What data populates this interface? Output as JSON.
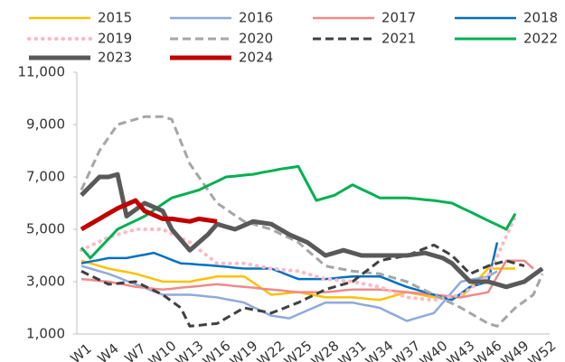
{
  "chart_data": {
    "type": "line",
    "categories": [
      "W1",
      null,
      null,
      "W4",
      null,
      null,
      "W7",
      null,
      null,
      "W10",
      null,
      null,
      "W13",
      null,
      null,
      "W16",
      null,
      null,
      "W19",
      null,
      null,
      "W22",
      null,
      null,
      "W25",
      null,
      null,
      "W28",
      null,
      null,
      "W31",
      null,
      null,
      "W34",
      null,
      null,
      "W37",
      null,
      null,
      "W40",
      null,
      null,
      "W43",
      null,
      null,
      "W46",
      null,
      null,
      "W49",
      null,
      null,
      "W52"
    ],
    "ylim": [
      1000,
      11000
    ],
    "yticks": [
      {
        "value": 1000,
        "label": "1,000"
      },
      {
        "value": 3000,
        "label": "3,000"
      },
      {
        "value": 5000,
        "label": "5,000"
      },
      {
        "value": 7000,
        "label": "7,000"
      },
      {
        "value": 9000,
        "label": "9,000"
      },
      {
        "value": 11000,
        "label": "11,000"
      }
    ],
    "series": [
      {
        "name": "2015",
        "color": "#ffc000",
        "style": "solid",
        "linewidth": 2.5,
        "values": [
          3800,
          3700,
          3600,
          3500,
          3430,
          3370,
          3300,
          3200,
          3100,
          3000,
          3000,
          3000,
          3000,
          3070,
          3130,
          3200,
          3200,
          3200,
          3200,
          2970,
          2730,
          2500,
          2530,
          2570,
          2600,
          2530,
          2470,
          2400,
          2400,
          2400,
          2400,
          2370,
          2330,
          2300,
          2400,
          2500,
          2600,
          2530,
          2470,
          2400,
          2400,
          2400,
          2400,
          2770,
          3130,
          3500,
          3500,
          3500,
          3500,
          null,
          null,
          null
        ]
      },
      {
        "name": "2016",
        "color": "#8faadc",
        "style": "solid",
        "linewidth": 2.5,
        "values": [
          3600,
          3500,
          3400,
          3300,
          3170,
          3030,
          2900,
          2770,
          2630,
          2500,
          2500,
          2500,
          2500,
          2470,
          2430,
          2400,
          2330,
          2270,
          2200,
          2030,
          1870,
          1700,
          1650,
          1600,
          1750,
          1900,
          2050,
          2200,
          2200,
          2200,
          2200,
          2130,
          2070,
          2000,
          1830,
          1670,
          1500,
          1600,
          1700,
          1800,
          2200,
          2600,
          3000,
          3070,
          3130,
          3200,
          3400,
          null,
          null,
          null,
          null,
          null
        ]
      },
      {
        "name": "2017",
        "color": "#ee8a8a",
        "style": "solid",
        "linewidth": 2.5,
        "values": [
          3100,
          3070,
          3030,
          3000,
          2930,
          2870,
          2800,
          2770,
          2730,
          2700,
          2730,
          2770,
          2800,
          2830,
          2870,
          2900,
          2870,
          2830,
          2800,
          2770,
          2730,
          2700,
          2670,
          2630,
          2600,
          2600,
          2600,
          2600,
          2630,
          2670,
          2700,
          2700,
          2700,
          2700,
          2670,
          2630,
          2600,
          2570,
          2530,
          2500,
          2470,
          2430,
          2400,
          2470,
          2530,
          2600,
          3200,
          3800,
          3800,
          3800,
          3500,
          null
        ]
      },
      {
        "name": "2018",
        "color": "#0070c0",
        "style": "solid",
        "linewidth": 2.5,
        "values": [
          3700,
          3770,
          3830,
          3900,
          3900,
          3900,
          3970,
          4030,
          4100,
          3970,
          3830,
          3700,
          3680,
          3650,
          3630,
          3600,
          3570,
          3530,
          3500,
          3500,
          3500,
          3500,
          3370,
          3230,
          3100,
          3100,
          3100,
          3100,
          3130,
          3170,
          3200,
          3200,
          3200,
          3200,
          3070,
          2930,
          2800,
          2700,
          2600,
          2500,
          2400,
          2300,
          2550,
          2800,
          2900,
          3000,
          4500,
          null,
          null,
          null,
          null,
          null
        ]
      },
      {
        "name": "2019",
        "color": "#ffb8c4",
        "style": "dotted",
        "linewidth": 4,
        "values": [
          4200,
          4370,
          4530,
          4700,
          4800,
          4900,
          5000,
          5000,
          5000,
          5000,
          4830,
          4670,
          4500,
          4230,
          3970,
          3700,
          3700,
          3700,
          3700,
          3630,
          3570,
          3500,
          3470,
          3430,
          3400,
          3300,
          3200,
          3100,
          3070,
          3030,
          3000,
          2930,
          2870,
          2800,
          2670,
          2530,
          2400,
          2370,
          2330,
          2300,
          2370,
          2430,
          2500,
          2730,
          2970,
          3200,
          3970,
          4730,
          5500,
          null,
          null,
          null
        ]
      },
      {
        "name": "2020",
        "color": "#a6a6a6",
        "style": "dashed",
        "linewidth": 3,
        "values": [
          6500,
          7250,
          8000,
          8500,
          9000,
          9100,
          9200,
          9300,
          9300,
          9300,
          9200,
          8350,
          7500,
          7000,
          6500,
          6000,
          5770,
          5530,
          5300,
          5200,
          5100,
          5000,
          4830,
          4670,
          4500,
          4200,
          3900,
          3600,
          3530,
          3470,
          3400,
          3370,
          3330,
          3300,
          3200,
          3100,
          3000,
          2830,
          2670,
          2500,
          2330,
          2170,
          2000,
          1800,
          1600,
          1400,
          1300,
          1650,
          2000,
          2250,
          2500,
          3300
        ]
      },
      {
        "name": "2021",
        "color": "#404040",
        "style": "dashed",
        "linewidth": 3,
        "values": [
          3400,
          3230,
          3070,
          2900,
          2930,
          2970,
          3000,
          2830,
          2670,
          2500,
          2250,
          2000,
          1300,
          1330,
          1370,
          1400,
          1600,
          1800,
          2000,
          1930,
          1870,
          1800,
          1930,
          2070,
          2200,
          2370,
          2530,
          2700,
          2800,
          2900,
          3000,
          3270,
          3530,
          3800,
          3870,
          3930,
          4000,
          4130,
          4270,
          4400,
          4200,
          4000,
          3650,
          3300,
          3450,
          3600,
          3700,
          3800,
          3700,
          3600,
          null,
          null
        ]
      },
      {
        "name": "2022",
        "color": "#00b050",
        "style": "solid",
        "linewidth": 3,
        "values": [
          4300,
          3900,
          4270,
          4630,
          5000,
          5170,
          5330,
          5500,
          5730,
          5970,
          6200,
          6300,
          6400,
          6500,
          6670,
          6830,
          7000,
          7030,
          7070,
          7100,
          7170,
          7230,
          7300,
          7350,
          7400,
          6750,
          6100,
          6200,
          6300,
          6500,
          6700,
          6530,
          6370,
          6200,
          6200,
          6200,
          6200,
          6170,
          6130,
          6100,
          6050,
          6000,
          5830,
          5670,
          5500,
          5330,
          5170,
          5000,
          5600,
          null,
          null,
          null
        ]
      },
      {
        "name": "2023",
        "color": "#595959",
        "style": "solid",
        "linewidth": 5,
        "values": [
          6300,
          6650,
          7000,
          7000,
          7100,
          5500,
          5750,
          6000,
          5850,
          5700,
          5000,
          4600,
          4200,
          4500,
          4800,
          5200,
          5100,
          5000,
          5150,
          5300,
          5250,
          5200,
          5000,
          4800,
          4650,
          4500,
          4250,
          4000,
          4100,
          4200,
          4100,
          4000,
          4000,
          4000,
          4000,
          4000,
          4000,
          4050,
          4100,
          4000,
          3900,
          3700,
          3350,
          3000,
          3000,
          3000,
          2900,
          2800,
          2900,
          3000,
          3250,
          3500
        ]
      },
      {
        "name": "2024",
        "color": "#c00000",
        "style": "solid",
        "linewidth": 5,
        "values": [
          5000,
          5200,
          5400,
          5600,
          5800,
          5950,
          6100,
          5700,
          5550,
          5400,
          5400,
          5350,
          5300,
          5400,
          5350,
          5300,
          null,
          null,
          null,
          null,
          null,
          null,
          null,
          null,
          null,
          null,
          null,
          null,
          null,
          null,
          null,
          null,
          null,
          null,
          null,
          null,
          null,
          null,
          null,
          null,
          null,
          null,
          null,
          null,
          null,
          null,
          null,
          null,
          null,
          null,
          null,
          null
        ]
      }
    ]
  }
}
